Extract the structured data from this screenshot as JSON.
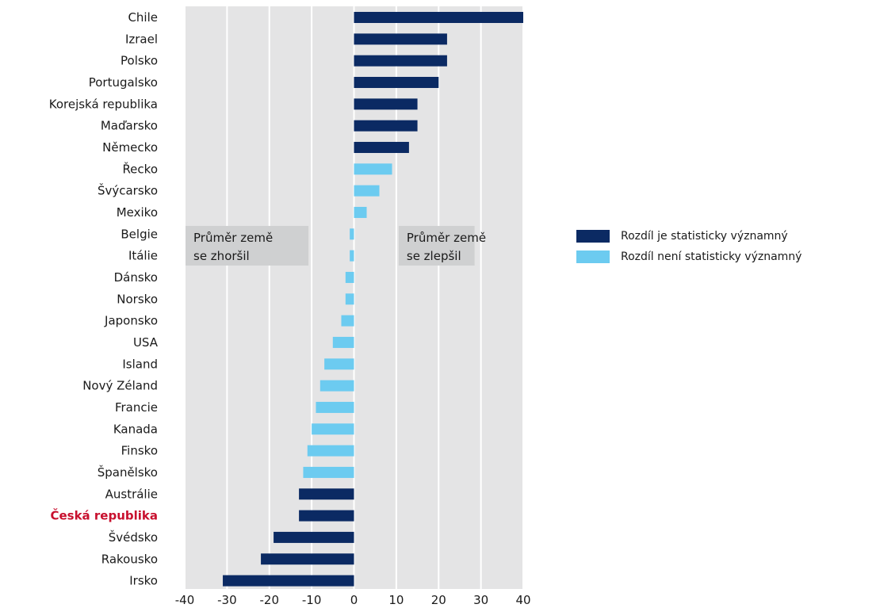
{
  "chart_data": {
    "type": "bar",
    "orientation": "horizontal",
    "categories": [
      "Chile",
      "Izrael",
      "Polsko",
      "Portugalsko",
      "Korejská republika",
      "Maďarsko",
      "Německo",
      "Řecko",
      "Švýcarsko",
      "Mexiko",
      "Belgie",
      "Itálie",
      "Dánsko",
      "Norsko",
      "Japonsko",
      "USA",
      "Island",
      "Nový Zéland",
      "Francie",
      "Kanada",
      "Finsko",
      "Španělsko",
      "Austrálie",
      "Česká republika",
      "Švédsko",
      "Rakousko",
      "Irsko"
    ],
    "values": [
      40,
      22,
      22,
      20,
      15,
      15,
      13,
      9,
      6,
      3,
      -1,
      -1,
      -2,
      -2,
      -3,
      -5,
      -7,
      -8,
      -9,
      -10,
      -11,
      -12,
      -13,
      -13,
      -19,
      -22,
      -31
    ],
    "significant": [
      true,
      true,
      true,
      true,
      true,
      true,
      true,
      false,
      false,
      false,
      false,
      false,
      false,
      false,
      false,
      false,
      false,
      false,
      false,
      false,
      false,
      false,
      true,
      true,
      true,
      true,
      true
    ],
    "highlight_category": "Česká republika",
    "xlim": [
      -40,
      40
    ],
    "xticks": [
      "-40",
      "-30",
      "-20",
      "-10",
      "0",
      "10",
      "20",
      "30",
      "40"
    ],
    "grid": true,
    "xlabel": "",
    "ylabel": "",
    "title": "",
    "legend": {
      "placement": "right",
      "items": [
        {
          "label": "Rozdíl je statisticky významný",
          "color": "#0b2a63"
        },
        {
          "label": "Rozdíl není statisticky významný",
          "color": "#6ccbf0"
        }
      ]
    },
    "annotations": {
      "negative": [
        "Průměr země",
        "se zhoršil"
      ],
      "positive": [
        "Průměr země",
        "se zlepšil"
      ]
    },
    "colors": {
      "significant": "#0b2a63",
      "not_significant": "#6ccbf0",
      "plot_background": "#e4e4e5",
      "annotation_box": "#cfd0d1",
      "highlight_label": "#c8102e"
    }
  }
}
